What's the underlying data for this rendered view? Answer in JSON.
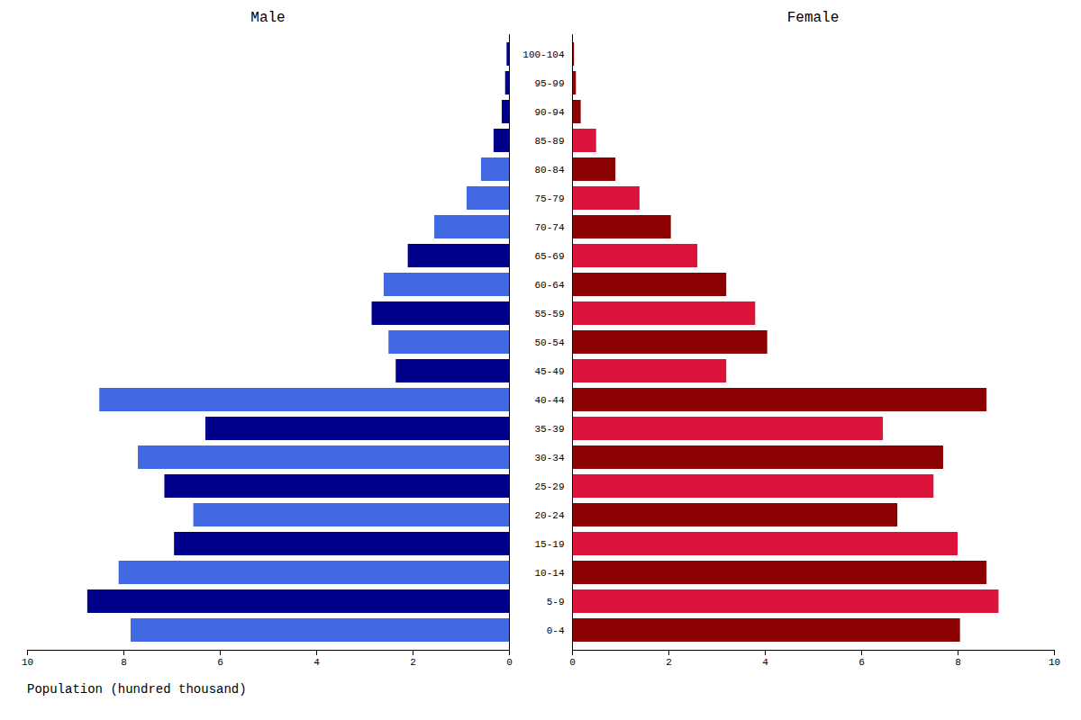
{
  "chart_data": {
    "type": "bar",
    "orientation": "horizontal",
    "xlabel": "Population (hundred thousand)",
    "categories": [
      "0-4",
      "5-9",
      "10-14",
      "15-19",
      "20-24",
      "25-29",
      "30-34",
      "35-39",
      "40-44",
      "45-49",
      "50-54",
      "55-59",
      "60-64",
      "65-69",
      "70-74",
      "75-79",
      "80-84",
      "85-89",
      "90-94",
      "95-99",
      "100-104"
    ],
    "series": [
      {
        "name": "Male",
        "colors": [
          "#4169E1",
          "#00008B",
          "#4169E1",
          "#00008B",
          "#4169E1",
          "#00008B",
          "#4169E1",
          "#00008B",
          "#4169E1",
          "#00008B",
          "#4169E1",
          "#00008B",
          "#4169E1",
          "#00008B",
          "#4169E1",
          "#4169E1",
          "#4169E1",
          "#00008B",
          "#00008B",
          "#00008B",
          "#00008B"
        ],
        "values": [
          7.85,
          8.75,
          8.1,
          6.95,
          6.55,
          7.15,
          7.7,
          6.3,
          8.5,
          2.35,
          2.5,
          2.85,
          2.6,
          2.1,
          1.55,
          0.88,
          0.58,
          0.32,
          0.15,
          0.08,
          0.05
        ]
      },
      {
        "name": "Female",
        "colors": [
          "#8B0000",
          "#DC143C",
          "#8B0000",
          "#DC143C",
          "#8B0000",
          "#DC143C",
          "#8B0000",
          "#DC143C",
          "#8B0000",
          "#DC143C",
          "#8B0000",
          "#DC143C",
          "#8B0000",
          "#DC143C",
          "#8B0000",
          "#DC143C",
          "#8B0000",
          "#DC143C",
          "#8B0000",
          "#8B0000",
          "#8B0000"
        ],
        "values": [
          8.05,
          8.85,
          8.6,
          8.0,
          6.75,
          7.5,
          7.7,
          6.45,
          8.6,
          3.2,
          4.05,
          3.8,
          3.2,
          2.6,
          2.05,
          1.4,
          0.9,
          0.5,
          0.18,
          0.08,
          0.04
        ]
      }
    ],
    "xlim": [
      0,
      10
    ],
    "xticks": [
      0,
      2,
      4,
      6,
      8,
      10
    ]
  }
}
